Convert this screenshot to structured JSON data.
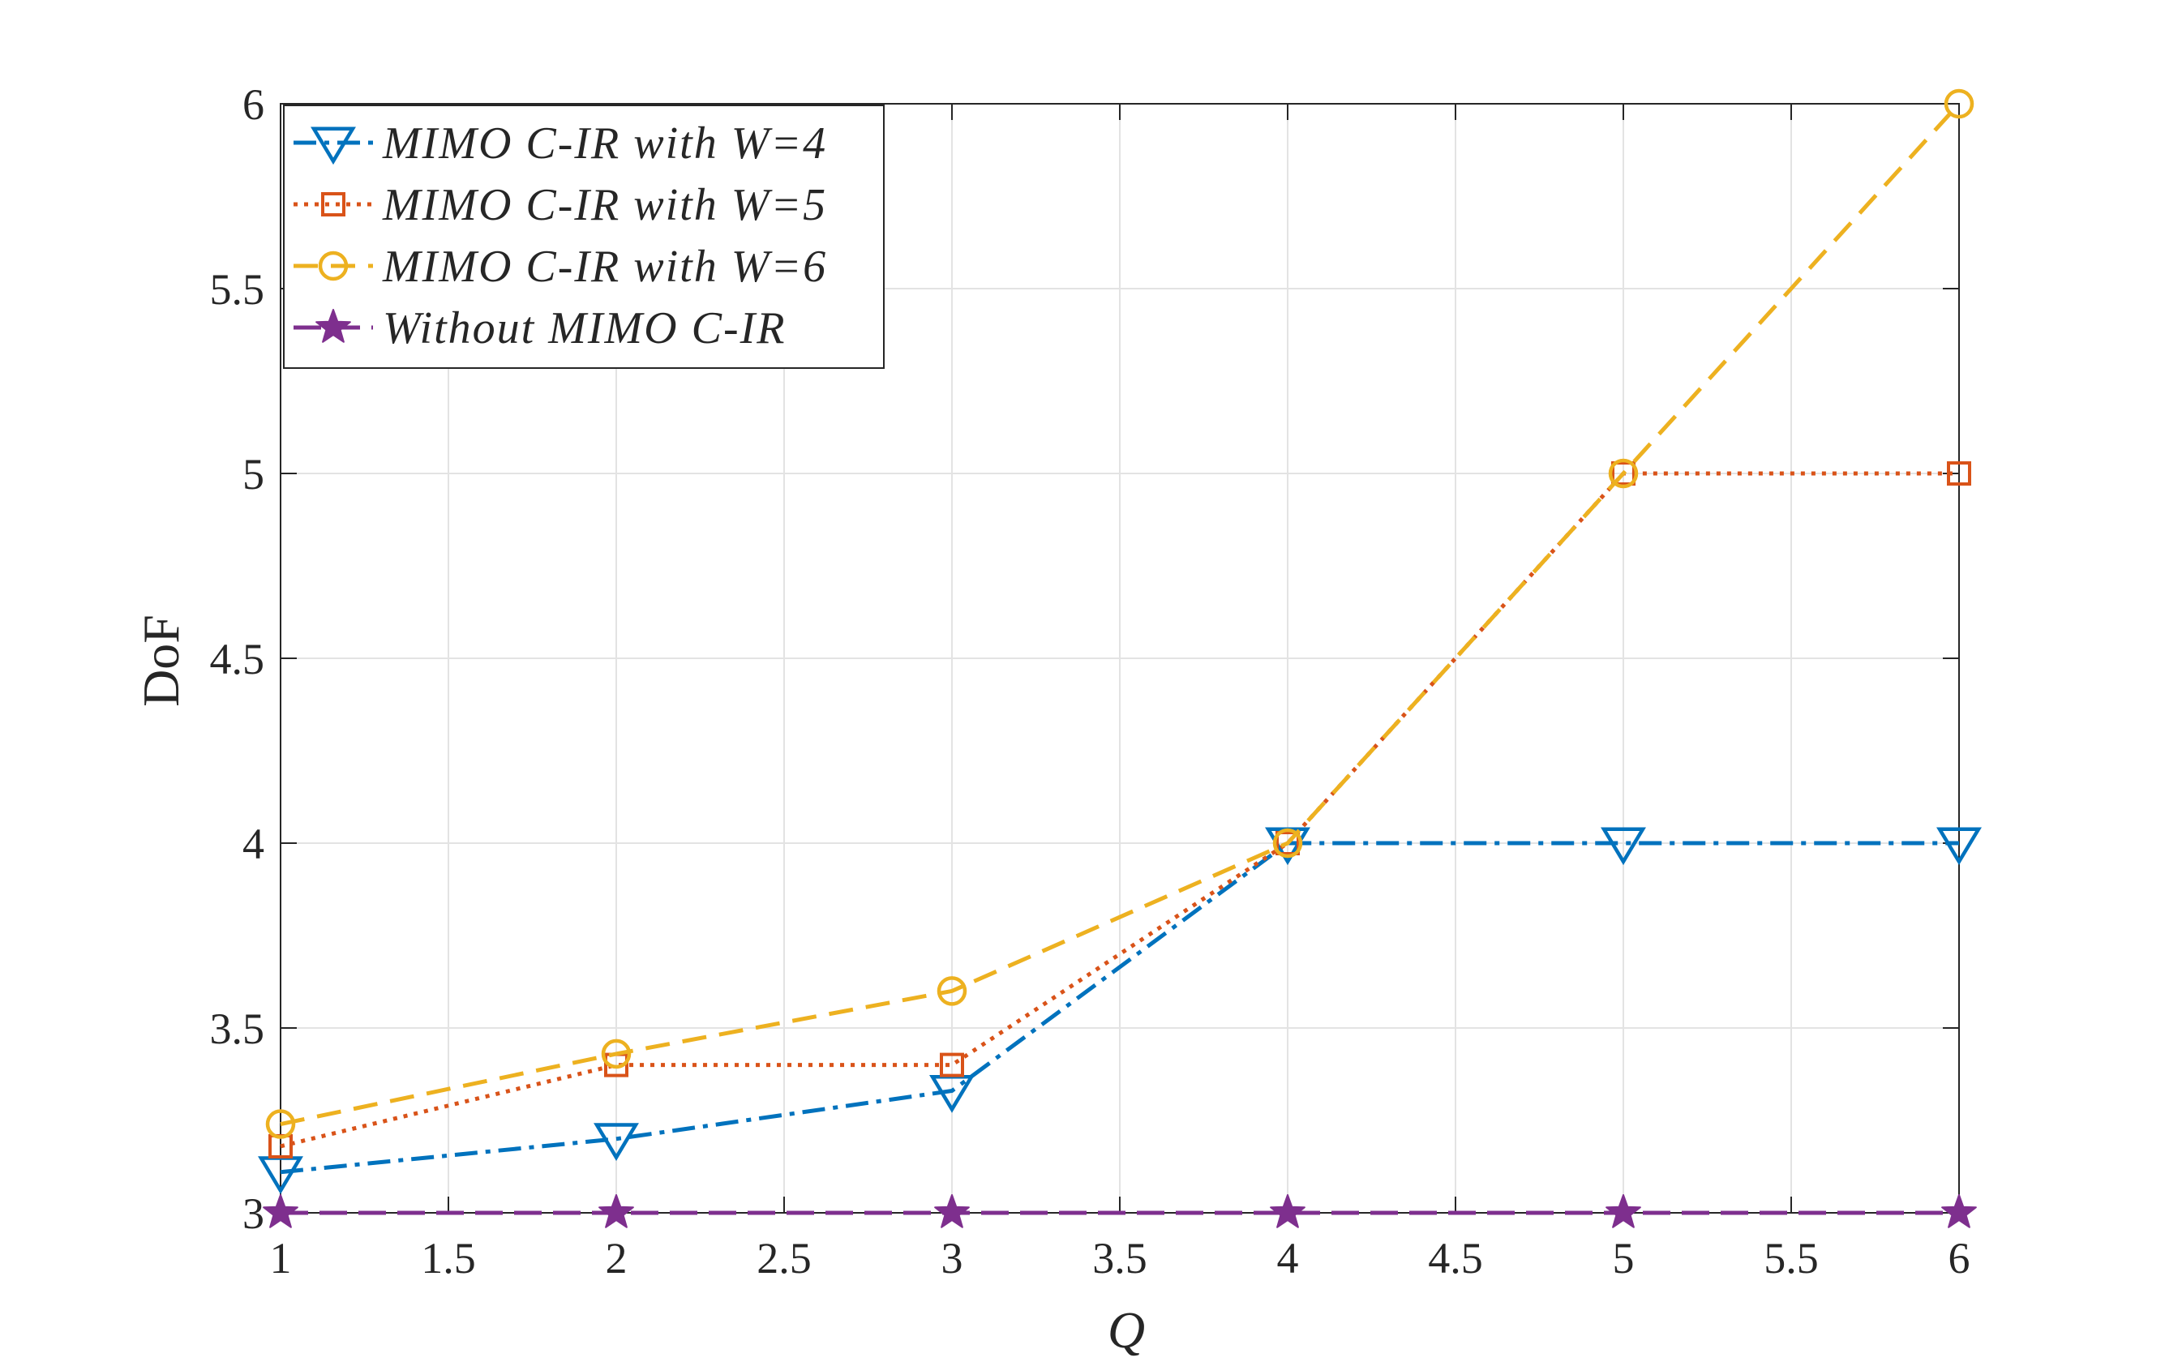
{
  "chart_data": {
    "type": "line",
    "xlabel": "Q",
    "ylabel": "DoF",
    "xlim": [
      1,
      6
    ],
    "ylim": [
      3,
      6
    ],
    "xticks": [
      1,
      1.5,
      2,
      2.5,
      3,
      3.5,
      4,
      4.5,
      5,
      5.5,
      6
    ],
    "yticks": [
      3,
      3.5,
      4,
      4.5,
      5,
      5.5,
      6
    ],
    "xtick_labels": [
      "1",
      "1.5",
      "2",
      "2.5",
      "3",
      "3.5",
      "4",
      "4.5",
      "5",
      "5.5",
      "6"
    ],
    "ytick_labels": [
      "3",
      "3.5",
      "4",
      "4.5",
      "5",
      "5.5",
      "6"
    ],
    "grid": true,
    "legend_position": "top-left",
    "x": [
      1,
      2,
      3,
      4,
      5,
      6
    ],
    "series": [
      {
        "name": "MIMO C-IR with W=4",
        "values": [
          3.11,
          3.2,
          3.33,
          4,
          4,
          4
        ],
        "color": "#0072BD",
        "marker": "triangle-down",
        "dash": "dash-dot"
      },
      {
        "name": "MIMO C-IR with W=5",
        "values": [
          3.18,
          3.4,
          3.4,
          4,
          5,
          5
        ],
        "color": "#D95319",
        "marker": "square",
        "dash": "dotted"
      },
      {
        "name": "MIMO C-IR with W=6",
        "values": [
          3.24,
          3.43,
          3.6,
          4,
          5,
          6
        ],
        "color": "#EDB120",
        "marker": "circle",
        "dash": "dashed"
      },
      {
        "name": "Without MIMO C-IR",
        "values": [
          3,
          3,
          3,
          3,
          3,
          3
        ],
        "color": "#7E2F8E",
        "marker": "star",
        "dash": "long-dash"
      }
    ]
  }
}
